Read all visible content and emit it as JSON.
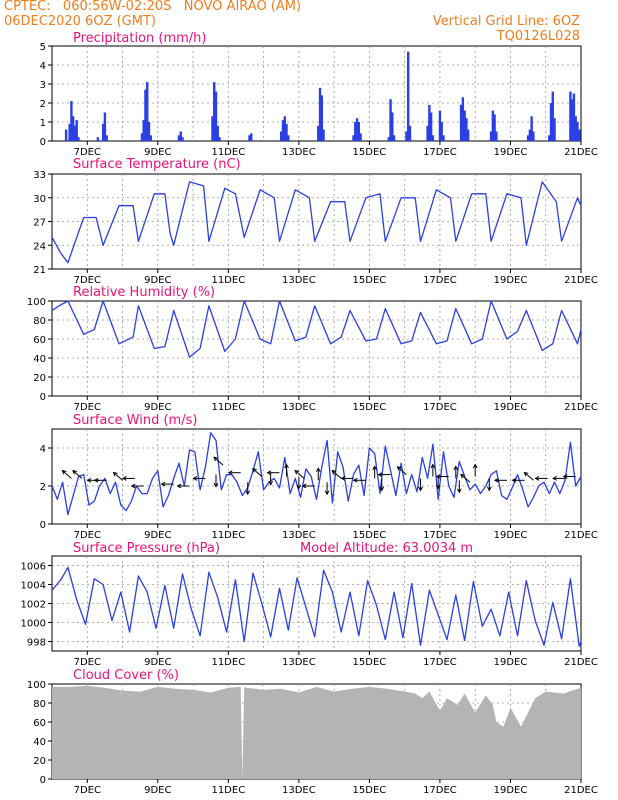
{
  "header": {
    "line1": "CPTEC:   060:56W-02:20S   NOVO AIRAO (AM)",
    "line2": "06DEC2020 6OZ (GMT)",
    "grid_note": "Vertical Grid Line: 6OZ",
    "run_code": "TQ0126L028"
  },
  "colors": {
    "series": "#2a3fe6",
    "title": "#e8137a",
    "header": "#f07d1e",
    "cloud": "#b4b4b4",
    "wind_arrow": "#000000"
  },
  "x_axis": {
    "start_day": 6,
    "end_day": 21,
    "labels": [
      "7DEC",
      "9DEC",
      "11DEC",
      "13DEC",
      "15DEC",
      "17DEC",
      "19DEC",
      "21DEC"
    ],
    "label_days": [
      7,
      9,
      11,
      13,
      15,
      17,
      19,
      21
    ]
  },
  "chart_data": [
    {
      "type": "bar",
      "title": "Precipitation (mm/h)",
      "ylim": [
        0,
        5
      ],
      "yticks": [
        "0",
        "1",
        "2",
        "3",
        "4",
        "5"
      ],
      "ytick_values": [
        0,
        1,
        2,
        3,
        4,
        5
      ],
      "x_unit": "day of Dec 2020 (fraction)",
      "points": [
        [
          6.4,
          0.6
        ],
        [
          6.5,
          0.9
        ],
        [
          6.55,
          2.1
        ],
        [
          6.6,
          1.3
        ],
        [
          6.65,
          0.8
        ],
        [
          6.7,
          1.1
        ],
        [
          6.75,
          0.2
        ],
        [
          7.3,
          0.2
        ],
        [
          7.45,
          0.9
        ],
        [
          7.5,
          1.5
        ],
        [
          7.55,
          0.3
        ],
        [
          8.55,
          0.4
        ],
        [
          8.6,
          1.1
        ],
        [
          8.65,
          2.7
        ],
        [
          8.7,
          3.1
        ],
        [
          8.75,
          1.0
        ],
        [
          8.8,
          0.3
        ],
        [
          9.6,
          0.3
        ],
        [
          9.65,
          0.5
        ],
        [
          9.7,
          0.2
        ],
        [
          10.55,
          1.3
        ],
        [
          10.6,
          3.1
        ],
        [
          10.65,
          2.6
        ],
        [
          10.7,
          0.8
        ],
        [
          10.75,
          0.2
        ],
        [
          11.6,
          0.3
        ],
        [
          11.65,
          0.4
        ],
        [
          12.5,
          0.5
        ],
        [
          12.55,
          1.1
        ],
        [
          12.6,
          1.3
        ],
        [
          12.65,
          0.9
        ],
        [
          12.7,
          0.3
        ],
        [
          13.55,
          0.8
        ],
        [
          13.6,
          2.8
        ],
        [
          13.65,
          2.4
        ],
        [
          13.7,
          0.6
        ],
        [
          14.55,
          0.3
        ],
        [
          14.6,
          1.0
        ],
        [
          14.65,
          1.2
        ],
        [
          14.7,
          1.0
        ],
        [
          14.75,
          0.4
        ],
        [
          15.55,
          0.2
        ],
        [
          15.6,
          2.2
        ],
        [
          15.65,
          1.5
        ],
        [
          15.7,
          0.3
        ],
        [
          16.05,
          0.5
        ],
        [
          16.1,
          4.7
        ],
        [
          16.15,
          0.8
        ],
        [
          16.65,
          0.8
        ],
        [
          16.7,
          1.9
        ],
        [
          16.75,
          1.5
        ],
        [
          16.8,
          0.3
        ],
        [
          17.0,
          1.6
        ],
        [
          17.05,
          1.0
        ],
        [
          17.1,
          0.3
        ],
        [
          17.6,
          1.9
        ],
        [
          17.65,
          2.3
        ],
        [
          17.7,
          1.6
        ],
        [
          17.75,
          1.2
        ],
        [
          17.8,
          0.6
        ],
        [
          18.45,
          0.5
        ],
        [
          18.5,
          1.6
        ],
        [
          18.55,
          1.4
        ],
        [
          18.6,
          0.5
        ],
        [
          19.5,
          0.3
        ],
        [
          19.55,
          0.6
        ],
        [
          19.6,
          1.3
        ],
        [
          19.65,
          0.5
        ],
        [
          20.1,
          0.3
        ],
        [
          20.15,
          2.0
        ],
        [
          20.2,
          2.6
        ],
        [
          20.25,
          1.2
        ],
        [
          20.7,
          2.6
        ],
        [
          20.75,
          2.2
        ],
        [
          20.8,
          2.5
        ],
        [
          20.85,
          1.3
        ],
        [
          20.9,
          1.0
        ],
        [
          20.95,
          0.6
        ]
      ]
    },
    {
      "type": "line",
      "title": "Surface Temperature (nC)",
      "ylim": [
        21,
        33
      ],
      "yticks": [
        "21",
        "24",
        "27",
        "30",
        "33"
      ],
      "ytick_values": [
        21,
        24,
        27,
        30,
        33
      ],
      "x": [
        6.0,
        6.25,
        6.45,
        6.9,
        7.25,
        7.45,
        7.9,
        8.3,
        8.45,
        8.9,
        9.2,
        9.35,
        9.45,
        9.9,
        10.3,
        10.45,
        10.9,
        11.2,
        11.45,
        11.9,
        12.3,
        12.45,
        12.9,
        13.3,
        13.45,
        13.9,
        14.3,
        14.45,
        14.9,
        15.3,
        15.45,
        15.9,
        16.3,
        16.45,
        16.9,
        17.3,
        17.45,
        17.9,
        18.3,
        18.45,
        18.9,
        19.3,
        19.45,
        19.9,
        20.3,
        20.45,
        20.9,
        21.0
      ],
      "y": [
        25.0,
        23.0,
        21.8,
        27.5,
        27.5,
        24.0,
        29.0,
        29.0,
        24.5,
        30.5,
        30.5,
        25.5,
        24.0,
        32.0,
        31.5,
        24.5,
        31.2,
        30.5,
        25.0,
        31.0,
        30.0,
        24.5,
        31.0,
        30.0,
        24.5,
        29.5,
        29.5,
        24.5,
        30.0,
        30.5,
        24.5,
        30.0,
        30.0,
        24.5,
        31.0,
        30.0,
        24.5,
        30.5,
        30.5,
        24.5,
        30.5,
        30.0,
        24.0,
        32.0,
        29.5,
        24.5,
        30.0,
        29.0
      ]
    },
    {
      "type": "line",
      "title": "Relative Humidity (%)",
      "ylim": [
        0,
        100
      ],
      "yticks": [
        "0",
        "20",
        "40",
        "60",
        "80",
        "100"
      ],
      "ytick_values": [
        0,
        20,
        40,
        60,
        80,
        100
      ],
      "x": [
        6.0,
        6.2,
        6.45,
        6.9,
        7.2,
        7.45,
        7.9,
        8.3,
        8.45,
        8.9,
        9.2,
        9.45,
        9.9,
        10.2,
        10.45,
        10.9,
        11.2,
        11.45,
        11.9,
        12.2,
        12.45,
        12.9,
        13.2,
        13.45,
        13.9,
        14.2,
        14.45,
        14.9,
        15.2,
        15.45,
        15.9,
        16.2,
        16.45,
        16.9,
        17.2,
        17.45,
        17.9,
        18.2,
        18.45,
        18.9,
        19.2,
        19.45,
        19.9,
        20.2,
        20.45,
        20.9,
        21.0
      ],
      "y": [
        90,
        95,
        100,
        65,
        70,
        100,
        55,
        62,
        95,
        50,
        52,
        90,
        41,
        50,
        95,
        47,
        60,
        100,
        60,
        55,
        100,
        58,
        62,
        95,
        55,
        62,
        90,
        58,
        60,
        92,
        55,
        58,
        88,
        55,
        58,
        92,
        55,
        60,
        100,
        60,
        68,
        90,
        48,
        55,
        90,
        55,
        70
      ]
    },
    {
      "type": "line",
      "title": "Surface Wind (m/s)",
      "ylim": [
        0,
        5
      ],
      "yticks": [
        "0",
        "2",
        "4"
      ],
      "ytick_values": [
        0,
        2,
        4
      ],
      "x": [
        6.0,
        6.15,
        6.3,
        6.45,
        6.6,
        6.75,
        6.9,
        7.05,
        7.2,
        7.35,
        7.5,
        7.65,
        7.8,
        7.95,
        8.1,
        8.25,
        8.4,
        8.55,
        8.7,
        8.85,
        9.0,
        9.15,
        9.3,
        9.45,
        9.6,
        9.75,
        9.9,
        10.05,
        10.2,
        10.35,
        10.5,
        10.65,
        10.8,
        10.95,
        11.1,
        11.25,
        11.4,
        11.55,
        11.7,
        11.85,
        12.0,
        12.15,
        12.3,
        12.45,
        12.6,
        12.75,
        12.9,
        13.05,
        13.2,
        13.35,
        13.5,
        13.65,
        13.8,
        13.95,
        14.1,
        14.25,
        14.4,
        14.55,
        14.7,
        14.85,
        15.0,
        15.15,
        15.3,
        15.45,
        15.6,
        15.75,
        15.9,
        16.05,
        16.2,
        16.35,
        16.5,
        16.65,
        16.8,
        16.95,
        17.1,
        17.25,
        17.4,
        17.55,
        17.7,
        17.85,
        18.0,
        18.15,
        18.3,
        18.45,
        18.6,
        18.75,
        18.9,
        19.05,
        19.2,
        19.35,
        19.5,
        19.65,
        19.8,
        19.95,
        20.1,
        20.25,
        20.4,
        20.55,
        20.7,
        20.85,
        21.0
      ],
      "y": [
        2.0,
        1.3,
        2.2,
        0.5,
        1.5,
        2.5,
        2.6,
        1.0,
        1.2,
        2.0,
        2.4,
        1.6,
        2.2,
        1.0,
        0.7,
        1.2,
        2.0,
        1.6,
        1.6,
        2.4,
        2.8,
        0.9,
        1.5,
        2.4,
        3.2,
        2.0,
        3.9,
        3.8,
        1.8,
        3.0,
        4.8,
        4.4,
        1.8,
        2.6,
        2.6,
        2.2,
        1.5,
        1.9,
        2.8,
        3.8,
        1.8,
        2.2,
        2.4,
        1.9,
        3.5,
        1.6,
        2.4,
        1.4,
        2.9,
        2.5,
        1.3,
        3.0,
        4.4,
        1.1,
        3.8,
        3.0,
        1.2,
        2.6,
        3.1,
        1.5,
        4.0,
        3.7,
        1.6,
        4.1,
        2.8,
        1.5,
        3.2,
        1.6,
        2.6,
        1.7,
        3.5,
        2.4,
        4.2,
        1.3,
        3.8,
        2.0,
        1.4,
        3.3,
        2.5,
        1.8,
        2.1,
        1.6,
        2.0,
        2.6,
        2.8,
        1.5,
        1.3,
        1.9,
        2.6,
        1.8,
        0.9,
        1.4,
        2.0,
        2.2,
        1.6,
        2.2,
        1.6,
        2.3,
        4.3,
        2.0,
        2.5
      ],
      "wind_arrows": [
        {
          "x": 6.55,
          "y": 2.4,
          "dir": "up-left"
        },
        {
          "x": 6.85,
          "y": 2.4,
          "dir": "up-left"
        },
        {
          "x": 7.35,
          "y": 2.3,
          "dir": "left"
        },
        {
          "x": 7.55,
          "y": 2.3,
          "dir": "left"
        },
        {
          "x": 8.0,
          "y": 2.3,
          "dir": "up-left"
        },
        {
          "x": 8.35,
          "y": 2.4,
          "dir": "left"
        },
        {
          "x": 8.6,
          "y": 2.0,
          "dir": "left"
        },
        {
          "x": 9.45,
          "y": 2.1,
          "dir": "left"
        },
        {
          "x": 9.9,
          "y": 2.0,
          "dir": "left"
        },
        {
          "x": 10.35,
          "y": 2.4,
          "dir": "left"
        },
        {
          "x": 10.65,
          "y": 2.6,
          "dir": "down"
        },
        {
          "x": 10.85,
          "y": 3.1,
          "dir": "up-left"
        },
        {
          "x": 11.35,
          "y": 2.7,
          "dir": "left"
        },
        {
          "x": 11.55,
          "y": 2.2,
          "dir": "down"
        },
        {
          "x": 11.95,
          "y": 2.5,
          "dir": "up-left"
        },
        {
          "x": 12.2,
          "y": 2.7,
          "dir": "down"
        },
        {
          "x": 12.45,
          "y": 2.7,
          "dir": "left"
        },
        {
          "x": 12.65,
          "y": 2.5,
          "dir": "up"
        },
        {
          "x": 13.0,
          "y": 2.5,
          "dir": "down"
        },
        {
          "x": 13.15,
          "y": 2.4,
          "dir": "up-left"
        },
        {
          "x": 13.45,
          "y": 2.0,
          "dir": "left"
        },
        {
          "x": 13.55,
          "y": 2.3,
          "dir": "up"
        },
        {
          "x": 13.8,
          "y": 2.2,
          "dir": "down"
        },
        {
          "x": 14.2,
          "y": 2.4,
          "dir": "up-left"
        },
        {
          "x": 14.55,
          "y": 2.4,
          "dir": "left"
        },
        {
          "x": 14.9,
          "y": 2.3,
          "dir": "left"
        },
        {
          "x": 15.15,
          "y": 2.4,
          "dir": "up"
        },
        {
          "x": 15.35,
          "y": 2.4,
          "dir": "down"
        },
        {
          "x": 15.6,
          "y": 2.6,
          "dir": "left"
        },
        {
          "x": 16.05,
          "y": 2.6,
          "dir": "up-left"
        },
        {
          "x": 16.45,
          "y": 2.4,
          "dir": "down"
        },
        {
          "x": 16.8,
          "y": 2.5,
          "dir": "up"
        },
        {
          "x": 16.95,
          "y": 2.5,
          "dir": "down"
        },
        {
          "x": 17.25,
          "y": 2.5,
          "dir": "left"
        },
        {
          "x": 17.45,
          "y": 2.4,
          "dir": "up"
        },
        {
          "x": 17.55,
          "y": 2.3,
          "dir": "down"
        },
        {
          "x": 17.85,
          "y": 2.2,
          "dir": "up-left"
        },
        {
          "x": 18.0,
          "y": 2.5,
          "dir": "up"
        },
        {
          "x": 18.4,
          "y": 2.4,
          "dir": "down"
        },
        {
          "x": 18.9,
          "y": 2.3,
          "dir": "left"
        },
        {
          "x": 19.4,
          "y": 2.3,
          "dir": "left"
        },
        {
          "x": 19.65,
          "y": 2.3,
          "dir": "up-left"
        },
        {
          "x": 20.05,
          "y": 2.4,
          "dir": "left"
        },
        {
          "x": 20.55,
          "y": 2.4,
          "dir": "left"
        },
        {
          "x": 20.85,
          "y": 2.5,
          "dir": "left"
        }
      ]
    },
    {
      "type": "line",
      "title": "Surface Pressure (hPa)",
      "subtitle": "Model Altitude:  63.0034 m",
      "ylim": [
        997,
        1007
      ],
      "yticks": [
        "998",
        "1000",
        "1002",
        "1004",
        "1006"
      ],
      "ytick_values": [
        998,
        1000,
        1002,
        1004,
        1006
      ],
      "x": [
        6.0,
        6.25,
        6.45,
        6.7,
        6.95,
        7.2,
        7.45,
        7.7,
        7.95,
        8.2,
        8.45,
        8.7,
        8.95,
        9.2,
        9.45,
        9.7,
        9.95,
        10.2,
        10.45,
        10.7,
        10.95,
        11.2,
        11.45,
        11.7,
        11.95,
        12.2,
        12.45,
        12.7,
        12.95,
        13.2,
        13.45,
        13.7,
        13.95,
        14.2,
        14.45,
        14.7,
        14.95,
        15.2,
        15.45,
        15.7,
        15.95,
        16.2,
        16.45,
        16.7,
        16.95,
        17.2,
        17.45,
        17.7,
        17.95,
        18.2,
        18.45,
        18.7,
        18.95,
        19.2,
        19.45,
        19.7,
        19.95,
        20.2,
        20.45,
        20.7,
        20.95,
        21.0
      ],
      "y": [
        1003.4,
        1004.5,
        1005.8,
        1002.4,
        999.8,
        1004.6,
        1004.0,
        1000.2,
        1003.2,
        999.0,
        1004.9,
        1003.2,
        999.4,
        1003.9,
        999.4,
        1005.1,
        1001.4,
        998.6,
        1005.3,
        1002.6,
        999.0,
        1004.5,
        998.0,
        1005.2,
        1002.0,
        998.5,
        1003.6,
        999.2,
        1004.7,
        1001.6,
        998.5,
        1005.5,
        1003.2,
        999.0,
        1003.2,
        998.6,
        1004.4,
        1001.8,
        998.2,
        1003.2,
        998.4,
        1004.1,
        997.6,
        1003.4,
        1000.8,
        998.2,
        1002.9,
        998.1,
        1004.3,
        999.6,
        1001.4,
        998.6,
        1003.2,
        998.6,
        1004.4,
        1000.2,
        997.6,
        1002.1,
        998.3,
        1004.6,
        997.5,
        998.0
      ]
    },
    {
      "type": "area",
      "title": "Cloud Cover (%)",
      "ylim": [
        0,
        100
      ],
      "yticks": [
        "0",
        "20",
        "40",
        "60",
        "80",
        "100"
      ],
      "ytick_values": [
        0,
        20,
        40,
        60,
        80,
        100
      ],
      "x": [
        6.0,
        6.5,
        7.0,
        7.5,
        8.0,
        8.5,
        9.0,
        9.5,
        10.0,
        10.5,
        11.0,
        11.35,
        11.4,
        11.45,
        11.5,
        12.0,
        12.5,
        13.0,
        13.5,
        14.0,
        14.5,
        15.0,
        15.5,
        16.0,
        16.3,
        16.5,
        16.7,
        17.0,
        17.2,
        17.5,
        17.7,
        18.0,
        18.3,
        18.5,
        18.6,
        18.8,
        19.0,
        19.3,
        19.5,
        19.7,
        20.0,
        20.5,
        21.0
      ],
      "y": [
        97,
        97,
        98,
        96,
        93,
        92,
        97,
        95,
        94,
        91,
        96,
        97,
        0,
        97,
        96,
        94,
        95,
        91,
        97,
        92,
        95,
        97,
        95,
        92,
        90,
        85,
        92,
        72,
        85,
        78,
        90,
        70,
        88,
        78,
        60,
        55,
        75,
        55,
        70,
        85,
        92,
        90,
        96
      ]
    }
  ]
}
